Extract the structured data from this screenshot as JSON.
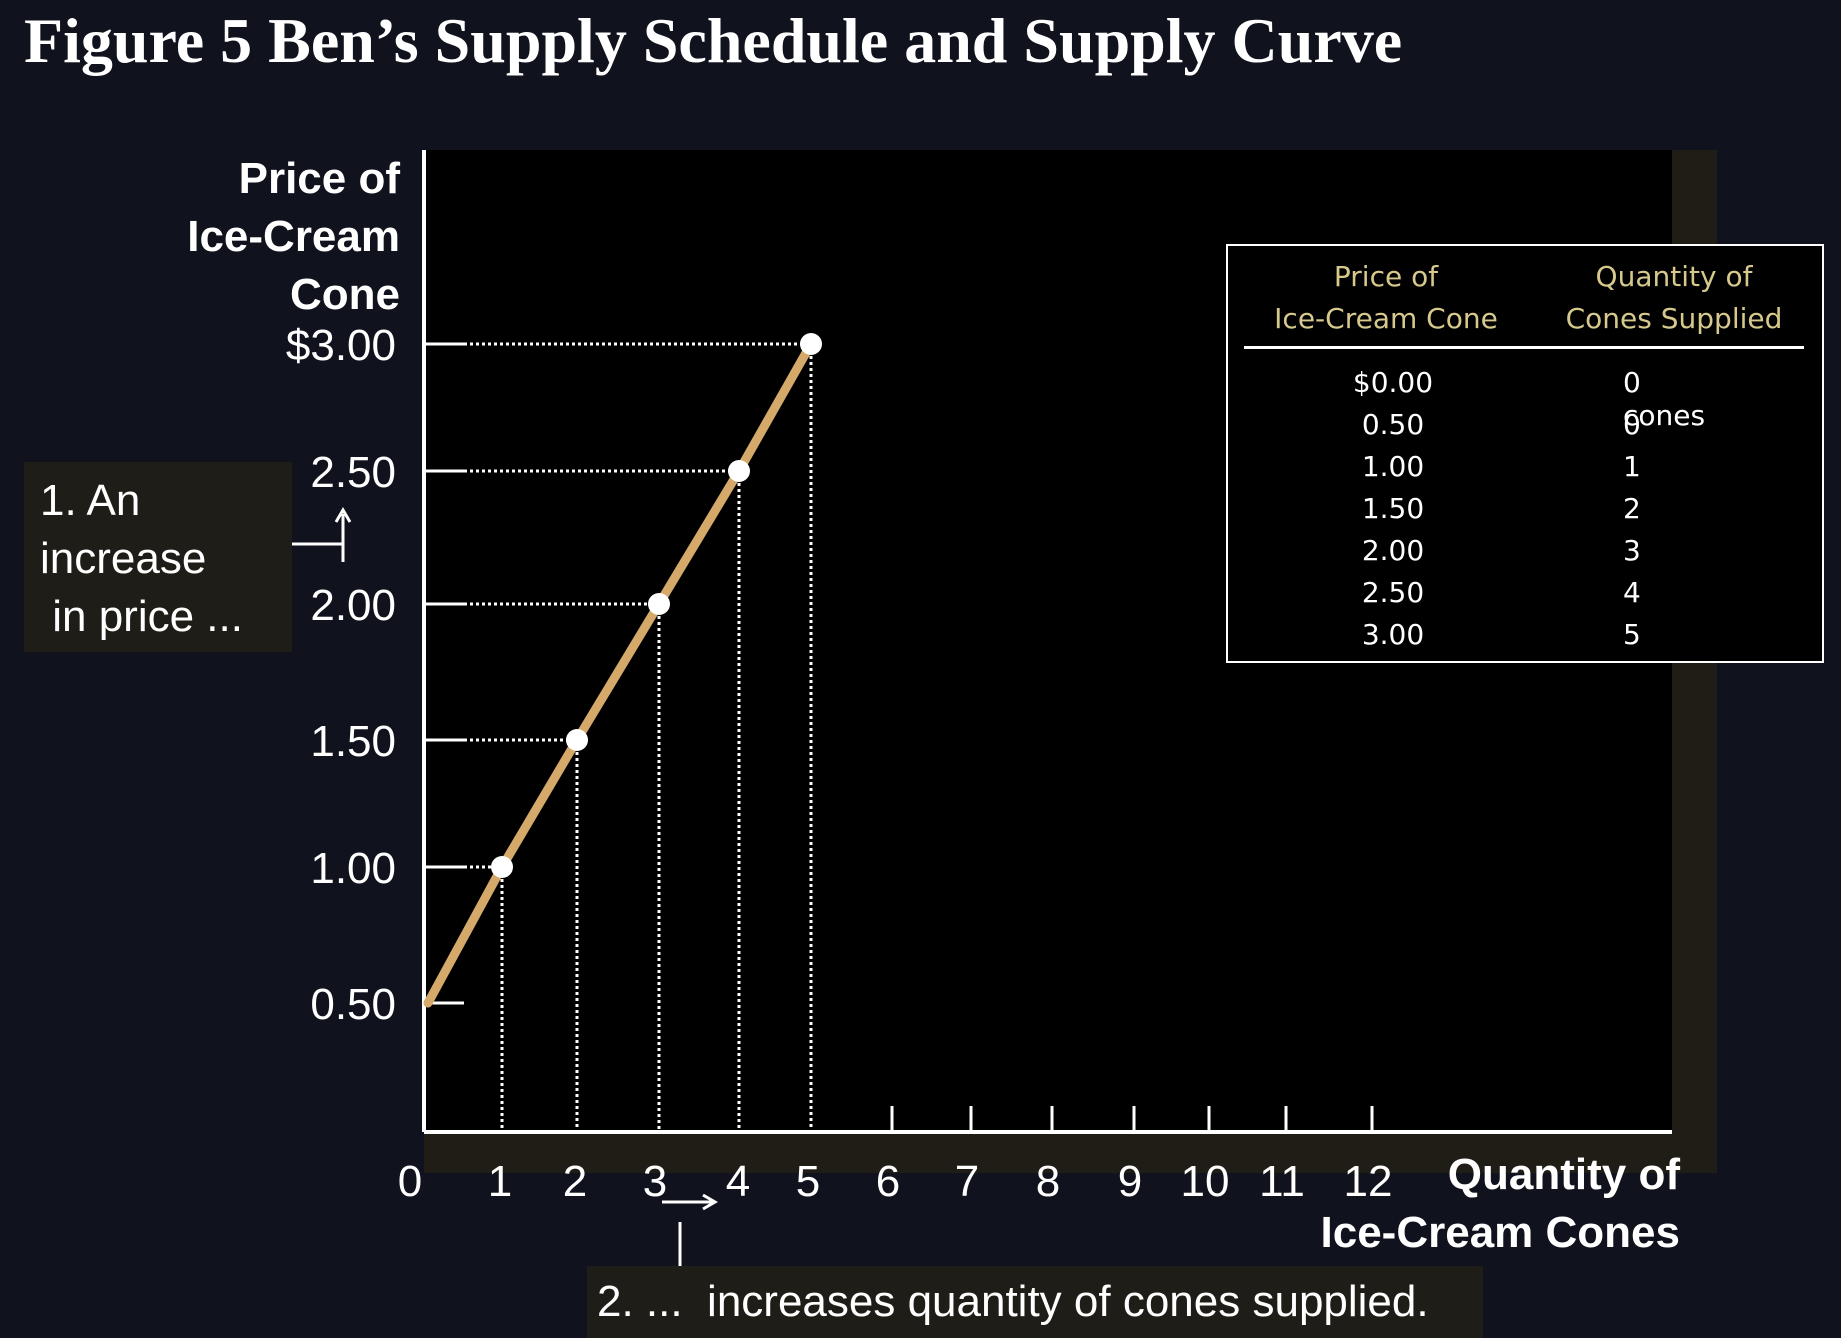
{
  "title": "Figure 5 Ben’s Supply Schedule and Supply Curve",
  "chart_data": {
    "type": "line",
    "title": "Figure 5 Ben’s Supply Schedule and Supply Curve",
    "ylabel_lines": [
      "Price of",
      "Ice-Cream",
      "Cone"
    ],
    "xlabel_lines": [
      "Quantity of",
      "Ice-Cream Cones"
    ],
    "x_ticks": [
      "0",
      "1",
      "2",
      "3",
      "4",
      "5",
      "6",
      "7",
      "8",
      "9",
      "10",
      "11",
      "12"
    ],
    "y_ticks": [
      "0.50",
      "1.00",
      "1.50",
      "2.00",
      "2.50",
      "$3.00"
    ],
    "y_tick_values": [
      0.5,
      1.0,
      1.5,
      2.0,
      2.5,
      3.0
    ],
    "xlim": [
      0,
      12
    ],
    "ylim": [
      0,
      3.0
    ],
    "series": [
      {
        "color": "#d4a96a",
        "x": [
          0,
          1,
          2,
          3,
          4,
          5
        ],
        "y": [
          0.5,
          1.0,
          1.5,
          2.0,
          2.5,
          3.0
        ]
      }
    ],
    "marked_points": [
      {
        "x": 1,
        "y": 1.0
      },
      {
        "x": 2,
        "y": 1.5
      },
      {
        "x": 3,
        "y": 2.0
      },
      {
        "x": 4,
        "y": 2.5
      },
      {
        "x": 5,
        "y": 3.0
      }
    ],
    "annotations": [
      {
        "lines": [
          "1. An",
          "increase",
          " in price ..."
        ]
      },
      {
        "text": "2. ...  increases quantity of cones supplied."
      }
    ],
    "grid": false
  },
  "schedule": {
    "headers": [
      [
        "Price of",
        "Ice-Cream Cone"
      ],
      [
        "Quantity of",
        "Cones Supplied"
      ]
    ],
    "rows": [
      {
        "price": "$0.00",
        "qty": "0 cones"
      },
      {
        "price": "0.50",
        "qty": "0"
      },
      {
        "price": "1.00",
        "qty": "1"
      },
      {
        "price": "1.50",
        "qty": "2"
      },
      {
        "price": "2.00",
        "qty": "3"
      },
      {
        "price": "2.50",
        "qty": "4"
      },
      {
        "price": "3.00",
        "qty": "5"
      }
    ]
  },
  "colors": {
    "curve": "#d4a96a",
    "table_header": "#d6c98b",
    "background": "#10121d"
  }
}
